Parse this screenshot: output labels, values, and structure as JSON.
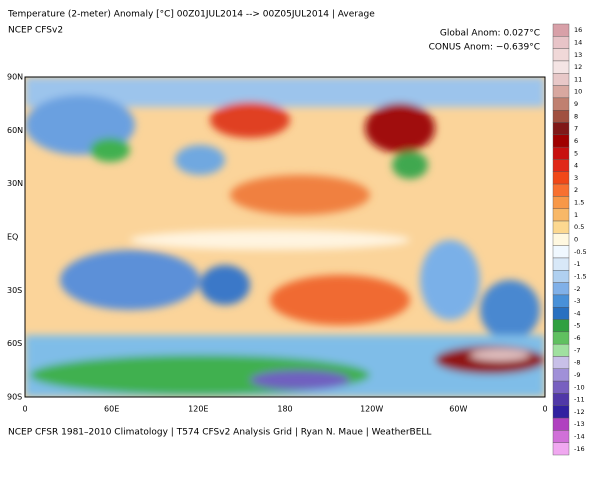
{
  "header": {
    "title": "Temperature (2-meter) Anomaly  [°C] 00Z01JUL2014 --> 00Z05JUL2014 | Average",
    "subtitle": "NCEP CFSv2",
    "global_anom": "Global Anom: 0.027°C",
    "conus_anom": "CONUS Anom: −0.639°C"
  },
  "map": {
    "lat_labels": [
      "90N",
      "60N",
      "30N",
      "EQ",
      "30S",
      "60S",
      "90S"
    ],
    "lon_labels": [
      "0",
      "60E",
      "120E",
      "180",
      "120W",
      "60W",
      "0"
    ]
  },
  "colorbar": {
    "labels": [
      16,
      14,
      13,
      12,
      11,
      10,
      9,
      8,
      7,
      6,
      5,
      4,
      3,
      2,
      1.5,
      1,
      0.5,
      0,
      -0.5,
      -1,
      -1.5,
      -2,
      -3,
      -4,
      -5,
      -6,
      -7,
      -8,
      -9,
      -10,
      -11,
      -12,
      -13,
      -14,
      -16
    ],
    "colors": [
      "#d8a0a8",
      "#e8c4c8",
      "#f0d8d8",
      "#f4e4e4",
      "#e8c8c8",
      "#d8a8a0",
      "#c08070",
      "#a05040",
      "#801818",
      "#a00000",
      "#c81010",
      "#e02818",
      "#f04818",
      "#f87030",
      "#f89848",
      "#f8b868",
      "#fcd890",
      "#fff8e0",
      "#f0f8ff",
      "#d8e8f8",
      "#b0d0f0",
      "#80b0e8",
      "#4890d8",
      "#2870c0",
      "#30a040",
      "#60c060",
      "#a0e0a0",
      "#c8c0e8",
      "#a090d8",
      "#7860c0",
      "#5038a8",
      "#3020a0",
      "#b040c0",
      "#d070d8",
      "#f0a8f0"
    ]
  },
  "footer": "NCEP CFSR 1981–2010 Climatology | T574 CFSv2 Analysis Grid | Ryan N. Maue | WeatherBELL"
}
